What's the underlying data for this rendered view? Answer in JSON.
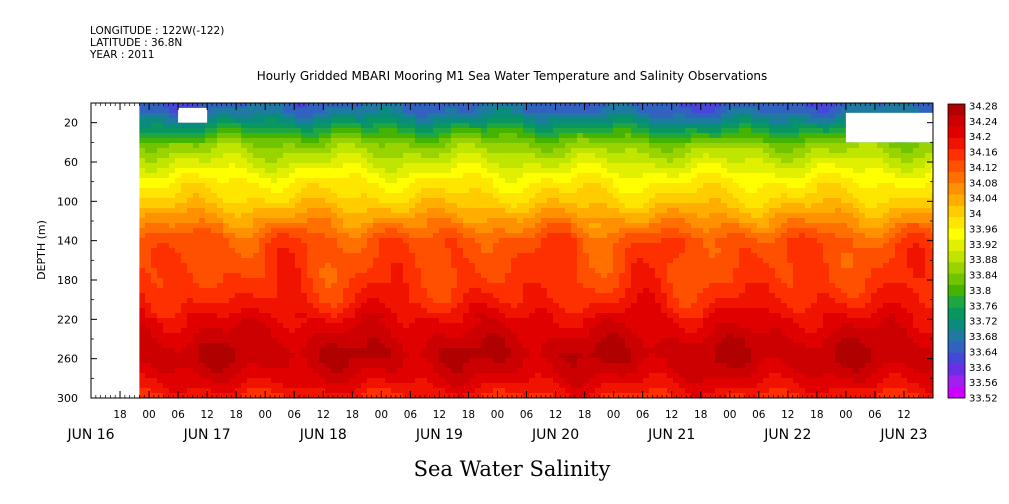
{
  "header": {
    "longitude": "LONGITUDE : 122W(-122)",
    "latitude": "LATITUDE : 36.8N",
    "year": "YEAR : 2011"
  },
  "chart_data": {
    "type": "heatmap",
    "title": "Hourly Gridded MBARI Mooring M1 Sea Water Temperature and Salinity Observations",
    "xlabel": "Sea Water Salinity",
    "ylabel": "DEPTH (m)",
    "y_axis": {
      "range": [
        0,
        300
      ],
      "inverted": true,
      "ticks": [
        20,
        60,
        100,
        140,
        180,
        220,
        260,
        300
      ]
    },
    "x_axis": {
      "start": "2011-06-16 12:00",
      "end": "2011-06-23 18:00",
      "hour_ticks": [
        {
          "t": "2011-06-16 18:00",
          "label": "18"
        },
        {
          "t": "2011-06-17 00:00",
          "label": "00"
        },
        {
          "t": "2011-06-17 06:00",
          "label": "06"
        },
        {
          "t": "2011-06-17 12:00",
          "label": "12"
        },
        {
          "t": "2011-06-17 18:00",
          "label": "18"
        },
        {
          "t": "2011-06-18 00:00",
          "label": "00"
        },
        {
          "t": "2011-06-18 06:00",
          "label": "06"
        },
        {
          "t": "2011-06-18 12:00",
          "label": "12"
        },
        {
          "t": "2011-06-18 18:00",
          "label": "18"
        },
        {
          "t": "2011-06-19 00:00",
          "label": "00"
        },
        {
          "t": "2011-06-19 06:00",
          "label": "06"
        },
        {
          "t": "2011-06-19 12:00",
          "label": "12"
        },
        {
          "t": "2011-06-19 18:00",
          "label": "18"
        },
        {
          "t": "2011-06-20 00:00",
          "label": "00"
        },
        {
          "t": "2011-06-20 06:00",
          "label": "06"
        },
        {
          "t": "2011-06-20 12:00",
          "label": "12"
        },
        {
          "t": "2011-06-20 18:00",
          "label": "18"
        },
        {
          "t": "2011-06-21 00:00",
          "label": "00"
        },
        {
          "t": "2011-06-21 06:00",
          "label": "06"
        },
        {
          "t": "2011-06-21 12:00",
          "label": "12"
        },
        {
          "t": "2011-06-21 18:00",
          "label": "18"
        },
        {
          "t": "2011-06-22 00:00",
          "label": "00"
        },
        {
          "t": "2011-06-22 06:00",
          "label": "06"
        },
        {
          "t": "2011-06-22 12:00",
          "label": "12"
        },
        {
          "t": "2011-06-22 18:00",
          "label": "18"
        },
        {
          "t": "2011-06-23 00:00",
          "label": "00"
        },
        {
          "t": "2011-06-23 06:00",
          "label": "06"
        },
        {
          "t": "2011-06-23 12:00",
          "label": "12"
        }
      ],
      "day_labels": [
        {
          "t": "2011-06-16 12:00",
          "label": "JUN 16"
        },
        {
          "t": "2011-06-17 12:00",
          "label": "JUN 17"
        },
        {
          "t": "2011-06-18 12:00",
          "label": "JUN 18"
        },
        {
          "t": "2011-06-19 12:00",
          "label": "JUN 19"
        },
        {
          "t": "2011-06-20 12:00",
          "label": "JUN 20"
        },
        {
          "t": "2011-06-21 12:00",
          "label": "JUN 21"
        },
        {
          "t": "2011-06-22 12:00",
          "label": "JUN 22"
        },
        {
          "t": "2011-06-23 12:00",
          "label": "JUN 23"
        }
      ]
    },
    "colorbar": {
      "labels": [
        "34.28",
        "34.24",
        "34.2",
        "34.16",
        "34.12",
        "34.08",
        "34.04",
        "34",
        "33.96",
        "33.92",
        "33.88",
        "33.84",
        "33.8",
        "33.76",
        "33.72",
        "33.68",
        "33.64",
        "33.6",
        "33.56",
        "33.52"
      ],
      "colors": [
        "#b00000",
        "#cc0000",
        "#e00000",
        "#f01400",
        "#ff3000",
        "#ff5000",
        "#ff7000",
        "#ff9000",
        "#ffae00",
        "#ffcc00",
        "#ffe600",
        "#ffff00",
        "#e0f000",
        "#c0e600",
        "#9ad400",
        "#70c400",
        "#44b400",
        "#1ea640",
        "#0a9660",
        "#0a8c7c",
        "#1e7aa0",
        "#3262c0",
        "#4646d8",
        "#6a2ee6",
        "#a020f0",
        "#cc00ff"
      ]
    },
    "depth_profile": [
      {
        "depth": 5,
        "salinity": 33.66
      },
      {
        "depth": 15,
        "salinity": 33.7
      },
      {
        "depth": 25,
        "salinity": 33.76
      },
      {
        "depth": 40,
        "salinity": 33.84
      },
      {
        "depth": 60,
        "salinity": 33.9
      },
      {
        "depth": 80,
        "salinity": 33.96
      },
      {
        "depth": 100,
        "salinity": 34.0
      },
      {
        "depth": 120,
        "salinity": 34.06
      },
      {
        "depth": 140,
        "salinity": 34.12
      },
      {
        "depth": 160,
        "salinity": 34.13
      },
      {
        "depth": 180,
        "salinity": 34.14
      },
      {
        "depth": 200,
        "salinity": 34.16
      },
      {
        "depth": 220,
        "salinity": 34.2
      },
      {
        "depth": 240,
        "salinity": 34.23
      },
      {
        "depth": 255,
        "salinity": 34.25
      },
      {
        "depth": 270,
        "salinity": 34.23
      },
      {
        "depth": 285,
        "salinity": 34.2
      },
      {
        "depth": 300,
        "salinity": 34.16
      }
    ],
    "missing_regions": [
      {
        "t0": "2011-06-16 12:00",
        "t1": "2011-06-16 22:00",
        "d0": 0,
        "d1": 300
      },
      {
        "t0": "2011-06-17 06:00",
        "t1": "2011-06-17 12:00",
        "d0": 5,
        "d1": 20
      },
      {
        "t0": "2011-06-23 00:00",
        "t1": "2011-06-23 18:00",
        "d0": 10,
        "d1": 40
      }
    ]
  }
}
